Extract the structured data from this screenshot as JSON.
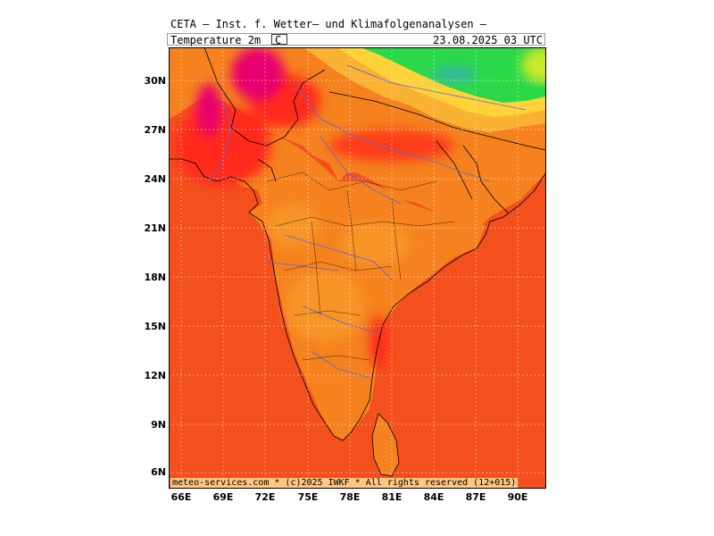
{
  "header": {
    "title": "CETA – Inst. f. Wetter– und Klimafolgenanalysen –",
    "parameter": "Temperature 2m",
    "unit": "C",
    "valid_time": "23.08.2025 03 UTC"
  },
  "axes": {
    "lat_labels": [
      "30N",
      "27N",
      "24N",
      "21N",
      "18N",
      "15N",
      "12N",
      "9N",
      "6N"
    ],
    "lon_labels": [
      "66E",
      "69E",
      "72E",
      "75E",
      "78E",
      "81E",
      "84E",
      "87E",
      "90E"
    ]
  },
  "credit": "meteo-services.com * (c)2025 IWKF * All rights reserved (12+015)",
  "colors": {
    "sea": "#f4501e",
    "land": "#f5821e",
    "hot": "#ff1f1f",
    "very_hot": "#e8006e",
    "mild": "#f9b233",
    "cool": "#ffd23a",
    "cold_green": "#2bd84a",
    "cold_blue": "#3a9ae8"
  }
}
